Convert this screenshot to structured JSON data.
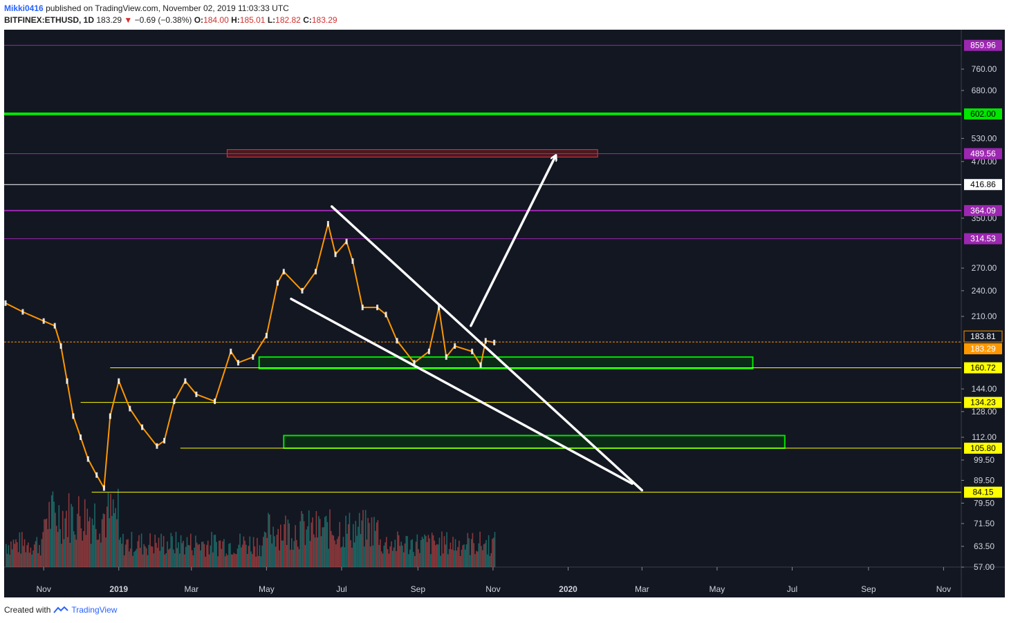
{
  "header": {
    "author": "Mikki0416",
    "published_text": "published on TradingView.com, November 02, 2019 11:03:33 UTC",
    "symbol": "BITFINEX:ETHUSD, 1D",
    "last": "183.29",
    "change": "−0.69 (−0.38%)",
    "o_label": "O:",
    "o_value": "184.00",
    "h_label": "H:",
    "h_value": "185.01",
    "l_label": "L:",
    "l_value": "182.82",
    "c_label": "C:",
    "c_value": "183.29"
  },
  "footer": {
    "created_with": "Created with",
    "brand": "TradingView"
  },
  "colors": {
    "background": "#131722",
    "candle_line": "#ff9800",
    "candle_body": "#ffffff",
    "volume_up": "#26a69a",
    "volume_down": "#ef5350",
    "green_level": "#00e600",
    "purple_level": "#9c27b0",
    "yellow_level": "#ffff00",
    "white_level": "#ffffff"
  },
  "chart_data": {
    "type": "line",
    "title": "",
    "log_scale": true,
    "ylim": [
      55,
      900
    ],
    "x_axis_ticks": [
      "Nov",
      "2019",
      "Mar",
      "May",
      "Jul",
      "Sep",
      "Nov",
      "2020",
      "Mar",
      "May",
      "Jul",
      "Sep",
      "Nov"
    ],
    "y_axis_ticks": [
      "760.00",
      "680.00",
      "530.00",
      "470.00",
      "350.00",
      "270.00",
      "240.00",
      "210.00",
      "144.00",
      "128.00",
      "112.00",
      "99.50",
      "89.50",
      "79.50",
      "71.50",
      "63.50",
      "57.00"
    ],
    "series": [
      {
        "x": [
          "2018-10-01",
          "2018-10-15",
          "2018-11-01",
          "2018-11-10",
          "2018-11-15",
          "2018-11-20",
          "2018-11-25",
          "2018-12-01",
          "2018-12-07",
          "2018-12-14",
          "2018-12-20",
          "2018-12-25",
          "2019-01-01",
          "2019-01-10",
          "2019-01-20",
          "2019-02-01",
          "2019-02-07",
          "2019-02-15",
          "2019-02-24",
          "2019-03-05",
          "2019-03-20",
          "2019-04-02",
          "2019-04-08",
          "2019-04-20",
          "2019-05-01",
          "2019-05-10",
          "2019-05-15",
          "2019-05-30",
          "2019-06-10",
          "2019-06-20",
          "2019-06-26",
          "2019-07-05",
          "2019-07-10",
          "2019-07-18",
          "2019-07-30",
          "2019-08-06",
          "2019-08-15",
          "2019-08-29",
          "2019-09-10",
          "2019-09-18",
          "2019-09-24",
          "2019-10-01",
          "2019-10-15",
          "2019-10-22",
          "2019-10-26",
          "2019-11-02"
        ],
        "values": [
          225,
          215,
          205,
          200,
          180,
          150,
          125,
          112,
          100,
          92,
          86,
          125,
          150,
          130,
          118,
          107,
          110,
          135,
          150,
          140,
          135,
          175,
          165,
          170,
          190,
          250,
          265,
          240,
          265,
          340,
          290,
          310,
          280,
          220,
          220,
          212,
          185,
          165,
          175,
          220,
          170,
          180,
          175,
          163,
          185,
          183.29
        ]
      }
    ],
    "levels": [
      {
        "label": "859.96",
        "value": 859.96,
        "color": "purple"
      },
      {
        "label": "602.00",
        "value": 602.0,
        "color": "green"
      },
      {
        "label": "489.56",
        "value": 489.56,
        "color": "purple"
      },
      {
        "label": "416.86",
        "value": 416.86,
        "color": "white"
      },
      {
        "label": "364.09",
        "value": 364.09,
        "color": "purple"
      },
      {
        "label": "314.53",
        "value": 314.53,
        "color": "purple"
      },
      {
        "label": "183.81",
        "value": 183.81,
        "color": "yellow-dotted"
      },
      {
        "label": "183.29",
        "value": 183.29,
        "color": "orange"
      },
      {
        "label": "160.72",
        "value": 160.72,
        "color": "yellow"
      },
      {
        "label": "134.23",
        "value": 134.23,
        "color": "yellow"
      },
      {
        "label": "105.80",
        "value": 105.8,
        "color": "yellow"
      },
      {
        "label": "84.15",
        "value": 84.15,
        "color": "yellow"
      }
    ],
    "zones": [
      {
        "color": "red",
        "x": [
          "2019-03-30",
          "2020-01-25"
        ],
        "y": [
          481,
          500
        ]
      },
      {
        "color": "green",
        "x": [
          "2019-04-25",
          "2020-05-30"
        ],
        "y": [
          160,
          170
        ]
      },
      {
        "color": "green",
        "x": [
          "2019-05-15",
          "2020-06-25"
        ],
        "y": [
          105.8,
          113
        ]
      }
    ],
    "annotations": [
      {
        "type": "trendline",
        "x": [
          "2019-06-23",
          "2020-03-01"
        ],
        "y": [
          372,
          85
        ]
      },
      {
        "type": "trendline",
        "x": [
          "2019-05-21",
          "2020-02-22"
        ],
        "y": [
          230,
          88
        ]
      },
      {
        "type": "arrow",
        "x": [
          "2019-10-14",
          "2019-12-22"
        ],
        "y": [
          200,
          485
        ]
      }
    ],
    "volume": {
      "unit": "relative",
      "note": "volume histogram at bottom, up=teal, down=red"
    }
  }
}
